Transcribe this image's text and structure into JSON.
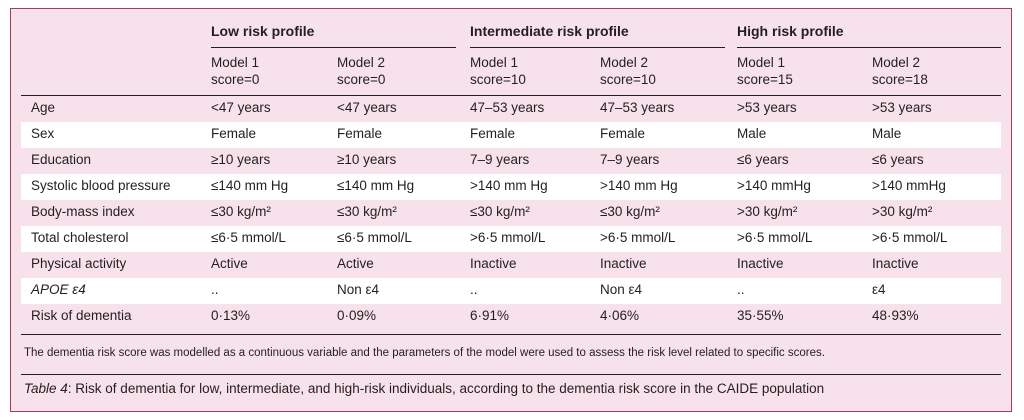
{
  "groups": [
    "Low risk profile",
    "Intermediate risk profile",
    "High risk profile"
  ],
  "models": [
    {
      "name": "Model 1",
      "score": "score=0"
    },
    {
      "name": "Model 2",
      "score": "score=0"
    },
    {
      "name": "Model 1",
      "score": "score=10"
    },
    {
      "name": "Model 2",
      "score": "score=10"
    },
    {
      "name": "Model 1",
      "score": "score=15"
    },
    {
      "name": "Model 2",
      "score": "score=18"
    }
  ],
  "rows": [
    {
      "label": "Age",
      "values": [
        "<47 years",
        "<47 years",
        "47–53 years",
        "47–53 years",
        ">53 years",
        ">53 years"
      ]
    },
    {
      "label": "Sex",
      "values": [
        "Female",
        "Female",
        "Female",
        "Female",
        "Male",
        "Male"
      ]
    },
    {
      "label": "Education",
      "values": [
        "≥10 years",
        "≥10 years",
        "7–9 years",
        "7–9 years",
        "≤6 years",
        "≤6 years"
      ]
    },
    {
      "label": "Systolic blood pressure",
      "values": [
        "≤140 mm Hg",
        "≤140 mm Hg",
        ">140 mm Hg",
        ">140 mm Hg",
        ">140 mmHg",
        ">140 mmHg"
      ]
    },
    {
      "label": "Body-mass index",
      "values": [
        "≤30 kg/m²",
        "≤30 kg/m²",
        "≤30 kg/m²",
        "≤30 kg/m²",
        ">30 kg/m²",
        ">30 kg/m²"
      ]
    },
    {
      "label": "Total cholesterol",
      "values": [
        "≤6·5 mmol/L",
        "≤6·5 mmol/L",
        ">6·5 mmol/L",
        ">6·5 mmol/L",
        ">6·5 mmol/L",
        ">6·5 mmol/L"
      ]
    },
    {
      "label": "Physical activity",
      "values": [
        "Active",
        "Active",
        "Inactive",
        "Inactive",
        "Inactive",
        "Inactive"
      ]
    },
    {
      "label": "APOE ε4",
      "values": [
        "..",
        "Non ε4",
        "..",
        "Non ε4",
        "..",
        "ε4"
      ]
    },
    {
      "label": "Risk of dementia",
      "values": [
        "0·13%",
        "0·09%",
        "6·91%",
        "4·06%",
        "35·55%",
        "48·93%"
      ]
    }
  ],
  "note": "The dementia risk score was modelled as a continuous variable and the parameters of the model were used to assess the risk level related to specific scores.",
  "caption": {
    "label": "Table 4",
    "text": ": Risk of dementia for low, intermediate, and high-risk individuals, according to the dementia risk score in the CAIDE population"
  },
  "colors": {
    "background": "#f7e1ea",
    "border": "#a33a67",
    "stripe": "#ffffff",
    "text": "#231f20"
  }
}
